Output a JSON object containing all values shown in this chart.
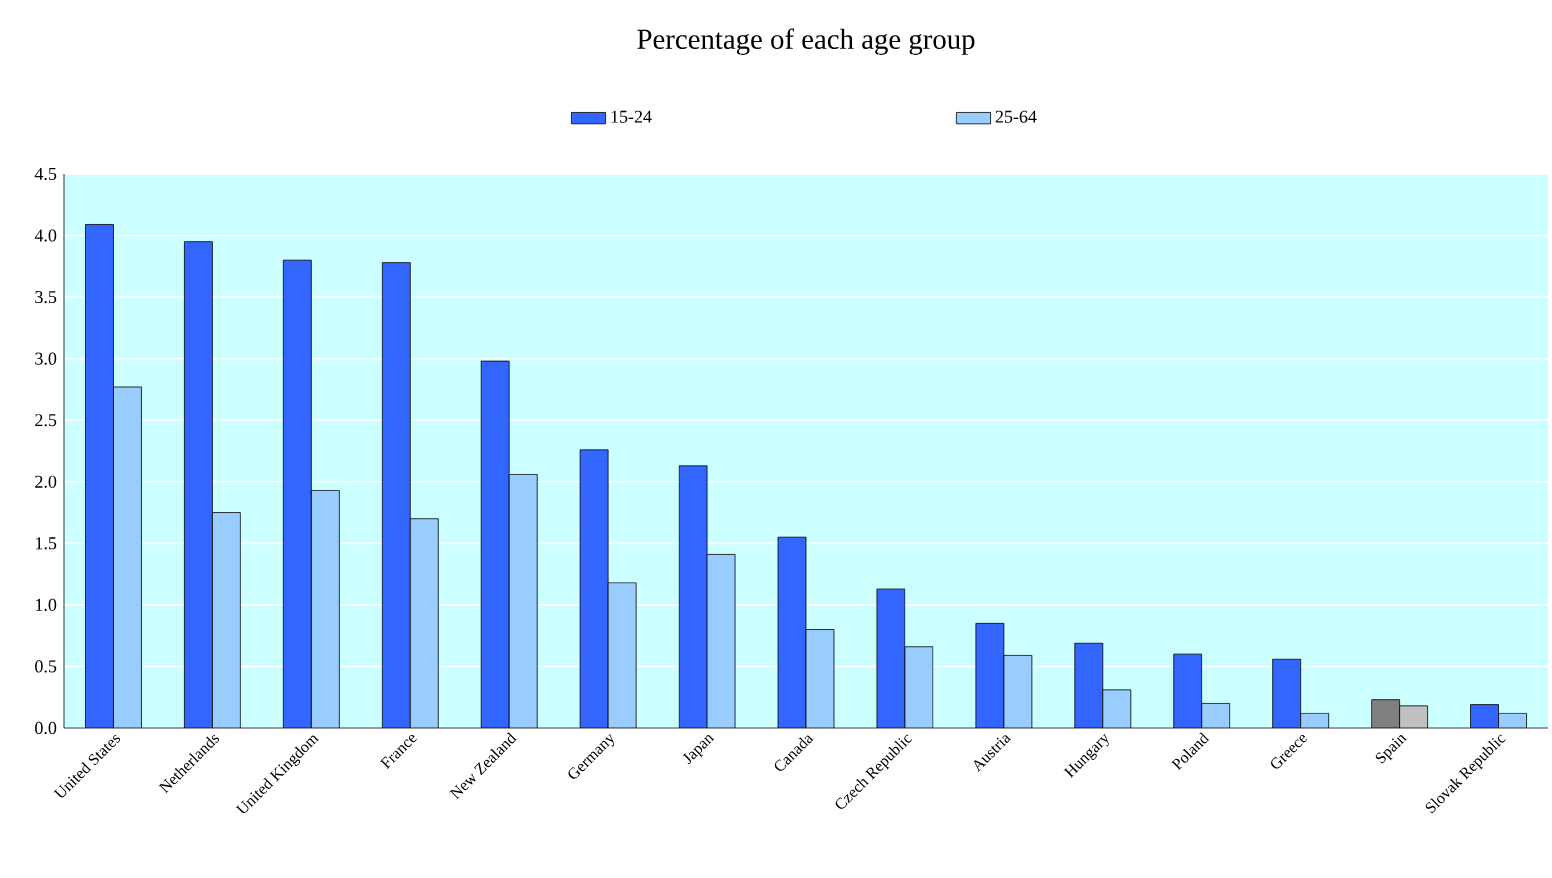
{
  "chart_data": {
    "type": "bar",
    "title": "Percentage of each age group",
    "categories": [
      "United States",
      "Netherlands",
      "United Kingdom",
      "France",
      "New Zealand",
      "Germany",
      "Japan",
      "Canada",
      "Czech Republic",
      "Austria",
      "Hungary",
      "Poland",
      "Greece",
      "Spain",
      "Slovak Republic"
    ],
    "series": [
      {
        "name": "15-24",
        "color": "#3366ff",
        "colors": [
          "#3366ff",
          "#3366ff",
          "#3366ff",
          "#3366ff",
          "#3366ff",
          "#3366ff",
          "#3366ff",
          "#3366ff",
          "#3366ff",
          "#3366ff",
          "#3366ff",
          "#3366ff",
          "#3366ff",
          "#808080",
          "#3366ff"
        ],
        "values": [
          4.09,
          3.95,
          3.8,
          3.78,
          2.98,
          2.26,
          2.13,
          1.55,
          1.13,
          0.85,
          0.69,
          0.6,
          0.56,
          0.23,
          0.19
        ]
      },
      {
        "name": "25-64",
        "color": "#99ccff",
        "colors": [
          "#99ccff",
          "#99ccff",
          "#99ccff",
          "#99ccff",
          "#99ccff",
          "#99ccff",
          "#99ccff",
          "#99ccff",
          "#99ccff",
          "#99ccff",
          "#99ccff",
          "#99ccff",
          "#99ccff",
          "#c0c0c0",
          "#99ccff"
        ],
        "values": [
          2.77,
          1.75,
          1.93,
          1.7,
          2.06,
          1.18,
          1.41,
          0.8,
          0.66,
          0.59,
          0.31,
          0.2,
          0.12,
          0.18,
          0.12
        ]
      }
    ],
    "ylim": [
      0,
      4.5
    ],
    "yticks": [
      {
        "value": 0,
        "label": "0.0"
      },
      {
        "value": 0.5,
        "label": "0.5"
      },
      {
        "value": 1,
        "label": "1.0"
      },
      {
        "value": 1.5,
        "label": "1.5"
      },
      {
        "value": 2,
        "label": "2.0"
      },
      {
        "value": 2.5,
        "label": "2.5"
      },
      {
        "value": 3,
        "label": "3.0"
      },
      {
        "value": 3.5,
        "label": "3.5"
      },
      {
        "value": 4,
        "label": "4.0"
      },
      {
        "value": 4.5,
        "label": "4.5"
      }
    ],
    "grid": "y",
    "legend": "top"
  }
}
